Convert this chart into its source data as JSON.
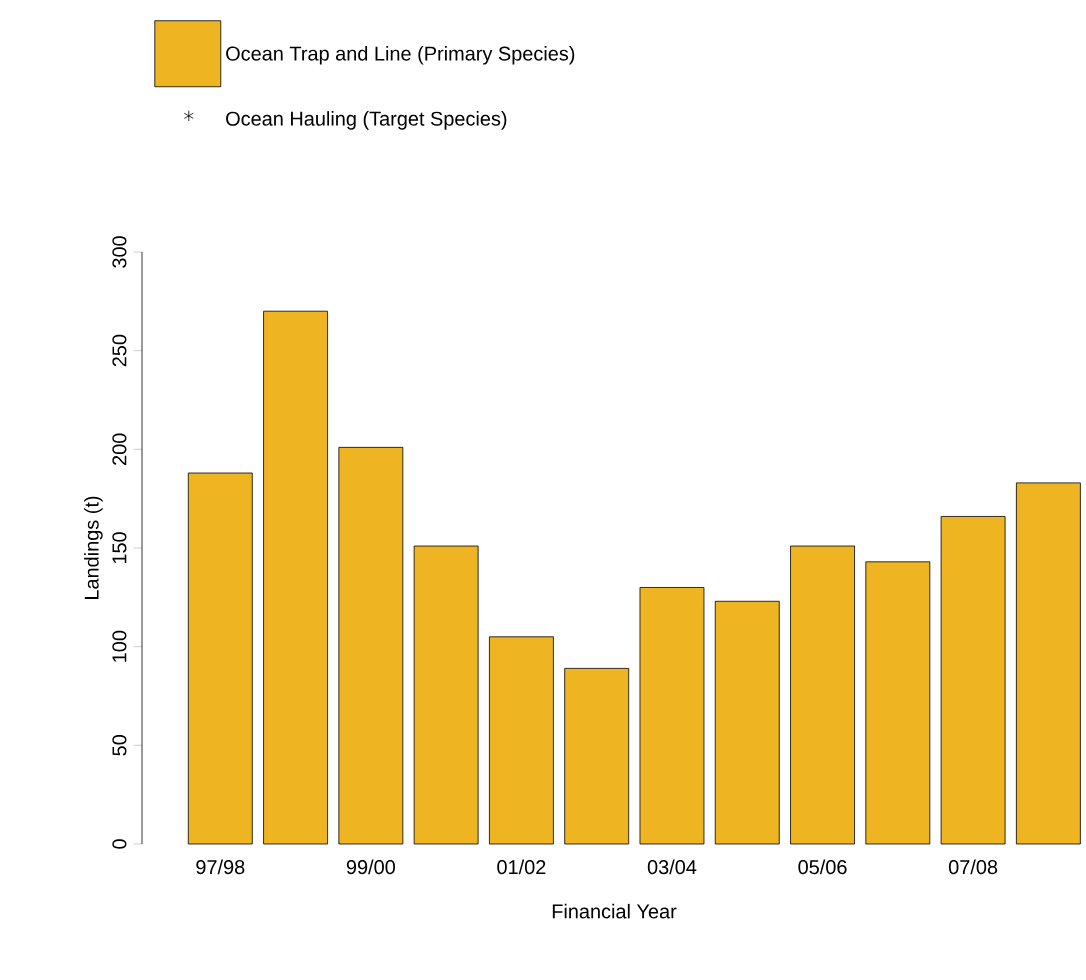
{
  "chart_data": {
    "type": "bar",
    "xlabel": "Financial Year",
    "ylabel": "Landings (t)",
    "categories": [
      "97/98",
      null,
      "99/00",
      null,
      "01/02",
      null,
      "03/04",
      null,
      "05/06",
      null,
      "07/08",
      null
    ],
    "series": [
      {
        "name": "Ocean Trap and Line (Primary Species)",
        "color": "#eeb422",
        "values": [
          188,
          270,
          201,
          151,
          105,
          89,
          130,
          123,
          151,
          143,
          166,
          183
        ]
      },
      {
        "name": "Ocean Hauling (Target Species)",
        "type": "scatter",
        "color": "#000000",
        "values": [
          null,
          null,
          null,
          null,
          null,
          null,
          null,
          null,
          null,
          null,
          null,
          null
        ]
      }
    ],
    "marker": "star",
    "ylim": [
      0,
      300
    ],
    "yticks": [
      0,
      50,
      100,
      150,
      200,
      250,
      300
    ],
    "legend": "top left"
  }
}
